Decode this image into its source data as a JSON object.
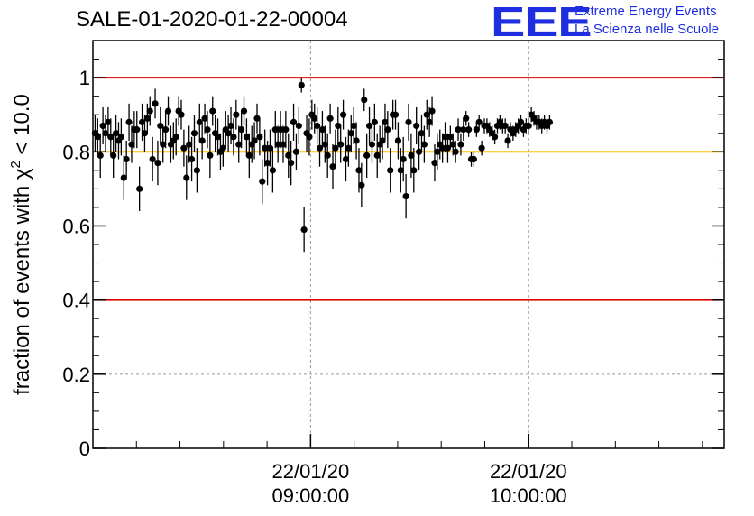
{
  "header": {
    "title": "SALE-01-2020-01-22-00004",
    "logo_mark": "EEE",
    "logo_line1": "Extreme Energy Events",
    "logo_line2": "La Scienza nelle Scuole"
  },
  "chart_data": {
    "type": "scatter",
    "title": "SALE-01-2020-01-22-00004",
    "ylabel_prefix": "fraction of events with ",
    "ylabel_symbol": "χ",
    "ylabel_sup": "2",
    "ylabel_suffix": " < 10.0",
    "ylim": [
      0,
      1.1
    ],
    "yticks": [
      0,
      0.2,
      0.4,
      0.6,
      0.8,
      1
    ],
    "ytick_labels": [
      "0",
      "0.2",
      "0.4",
      "0.6",
      "0.8",
      "1"
    ],
    "x_range_hours": [
      8.0,
      10.9
    ],
    "x_units": "hours of 2020-01-22",
    "xticks": [
      {
        "value": 9.0,
        "date": "22/01/20",
        "time": "09:00:00"
      },
      {
        "value": 10.0,
        "date": "22/01/20",
        "time": "10:00:00"
      }
    ],
    "grid": true,
    "reference_lines": [
      {
        "value": 1.0,
        "color": "#e00000"
      },
      {
        "value": 0.8,
        "color": "#ffbf00"
      },
      {
        "value": 0.4,
        "color": "#e00000"
      }
    ],
    "marker_color": "#000000",
    "points": {
      "x_start": 8.01,
      "x_step": 0.012,
      "y": [
        0.85,
        0.84,
        0.79,
        0.87,
        0.85,
        0.88,
        0.84,
        0.79,
        0.85,
        0.83,
        0.84,
        0.73,
        0.78,
        0.88,
        0.82,
        0.86,
        0.86,
        0.7,
        0.88,
        0.85,
        0.89,
        0.91,
        0.78,
        0.93,
        0.77,
        0.87,
        0.82,
        0.86,
        0.91,
        0.82,
        0.83,
        0.84,
        0.91,
        0.9,
        0.81,
        0.73,
        0.82,
        0.78,
        0.85,
        0.75,
        0.88,
        0.83,
        0.89,
        0.86,
        0.79,
        0.91,
        0.85,
        0.84,
        0.8,
        0.81,
        0.86,
        0.85,
        0.87,
        0.84,
        0.9,
        0.82,
        0.86,
        0.91,
        0.84,
        0.79,
        0.82,
        0.83,
        0.89,
        0.84,
        0.72,
        0.81,
        0.77,
        0.81,
        0.75,
        0.86,
        0.82,
        0.86,
        0.82,
        0.86,
        0.79,
        0.77,
        0.88,
        0.8,
        0.87,
        0.98,
        0.59,
        0.85,
        0.84,
        0.9,
        0.89,
        0.87,
        0.81,
        0.86,
        0.82,
        0.79,
        0.89,
        0.76,
        0.81,
        0.87,
        0.82,
        0.9,
        0.78,
        0.81,
        0.85,
        0.87,
        0.83,
        0.75,
        0.71,
        0.94,
        0.79,
        0.87,
        0.82,
        0.88,
        0.79,
        0.82,
        0.83,
        0.88,
        0.86,
        0.75,
        0.9,
        0.9,
        0.83,
        0.75,
        0.78,
        0.68,
        0.88,
        0.79,
        0.75,
        0.87,
        0.8,
        0.85,
        0.82,
        0.9,
        0.88,
        0.91,
        0.77,
        0.8,
        0.82,
        0.81,
        0.84,
        0.81,
        0.84,
        0.82,
        0.8,
        0.86,
        0.82,
        0.86,
        0.89,
        0.86,
        0.78,
        0.78,
        0.86,
        0.88,
        0.81,
        0.87,
        0.87,
        0.86,
        0.85,
        0.84,
        0.87,
        0.88,
        0.87,
        0.87,
        0.83,
        0.86,
        0.85,
        0.86,
        0.87,
        0.88,
        0.86,
        0.87,
        0.87,
        0.9,
        0.89,
        0.88,
        0.88,
        0.87,
        0.88,
        0.87,
        0.88
      ],
      "err": [
        0.05,
        0.05,
        0.06,
        0.05,
        0.05,
        0.04,
        0.05,
        0.06,
        0.05,
        0.05,
        0.05,
        0.06,
        0.05,
        0.05,
        0.05,
        0.05,
        0.05,
        0.06,
        0.05,
        0.05,
        0.04,
        0.04,
        0.06,
        0.04,
        0.06,
        0.05,
        0.05,
        0.05,
        0.04,
        0.05,
        0.05,
        0.05,
        0.04,
        0.04,
        0.05,
        0.06,
        0.05,
        0.06,
        0.05,
        0.06,
        0.05,
        0.05,
        0.04,
        0.05,
        0.06,
        0.04,
        0.05,
        0.05,
        0.05,
        0.05,
        0.05,
        0.05,
        0.05,
        0.05,
        0.04,
        0.05,
        0.05,
        0.04,
        0.05,
        0.06,
        0.05,
        0.05,
        0.04,
        0.05,
        0.06,
        0.05,
        0.06,
        0.05,
        0.06,
        0.05,
        0.05,
        0.05,
        0.05,
        0.05,
        0.06,
        0.06,
        0.05,
        0.05,
        0.05,
        0.02,
        0.06,
        0.05,
        0.05,
        0.04,
        0.04,
        0.05,
        0.05,
        0.05,
        0.05,
        0.06,
        0.04,
        0.06,
        0.05,
        0.05,
        0.05,
        0.04,
        0.06,
        0.05,
        0.05,
        0.05,
        0.05,
        0.06,
        0.06,
        0.03,
        0.06,
        0.05,
        0.05,
        0.05,
        0.06,
        0.05,
        0.05,
        0.05,
        0.05,
        0.06,
        0.04,
        0.04,
        0.05,
        0.06,
        0.06,
        0.06,
        0.05,
        0.06,
        0.06,
        0.05,
        0.05,
        0.05,
        0.05,
        0.04,
        0.04,
        0.04,
        0.05,
        0.05,
        0.04,
        0.04,
        0.04,
        0.04,
        0.03,
        0.03,
        0.03,
        0.03,
        0.03,
        0.03,
        0.02,
        0.02,
        0.02,
        0.02,
        0.02,
        0.02,
        0.02,
        0.02,
        0.02,
        0.02,
        0.02,
        0.02,
        0.02,
        0.02,
        0.02,
        0.02,
        0.02,
        0.02,
        0.02,
        0.02,
        0.02,
        0.02,
        0.02,
        0.02,
        0.02,
        0.02,
        0.02,
        0.02,
        0.02,
        0.02,
        0.02,
        0.02,
        0.02
      ]
    }
  }
}
